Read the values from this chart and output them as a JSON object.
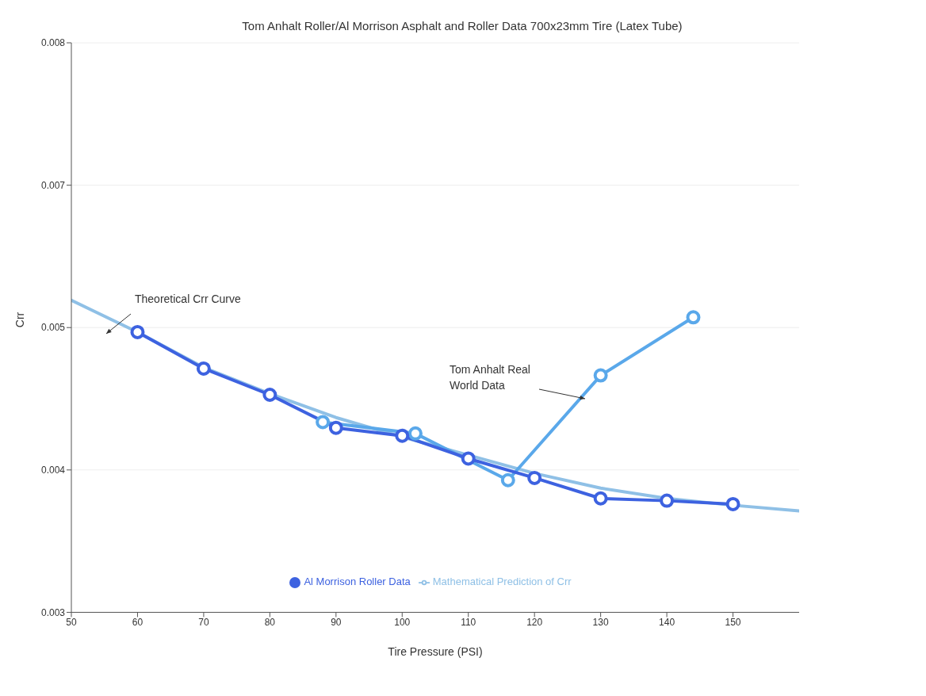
{
  "chart_data": {
    "type": "line",
    "title": "Tom Anhalt Roller/Al Morrison Asphalt and Roller Data 700x23mm Tire (Latex Tube)",
    "xlabel": "Tire Pressure (PSI)",
    "ylabel": "Crr",
    "xlim": [
      50,
      160
    ],
    "xticks": [
      50,
      60,
      70,
      80,
      90,
      100,
      110,
      120,
      130,
      140,
      150
    ],
    "ylim": [
      0.003,
      0.008
    ],
    "yticks": [
      {
        "value": 0.003,
        "label": "0.003"
      },
      {
        "value": 0.00425,
        "label": "0.004"
      },
      {
        "value": 0.0055,
        "label": "0.005"
      },
      {
        "value": 0.00675,
        "label": "0.007"
      },
      {
        "value": 0.008,
        "label": "0.008"
      }
    ],
    "grid": "y",
    "legend": "bottom",
    "line_style": "solid",
    "series": [
      {
        "name": "Mathematical Prediction of Crr",
        "color": "#8fc0e6",
        "marker": "none",
        "x": [
          50,
          60,
          70,
          80,
          90,
          100,
          110,
          120,
          130,
          140,
          150,
          160
        ],
        "values": [
          0.00574,
          0.00546,
          0.00515,
          0.00492,
          0.00471,
          0.00454,
          0.00438,
          0.00422,
          0.00409,
          0.004,
          0.00394,
          0.00389
        ]
      },
      {
        "color": "#5aa8ea",
        "marker": "circle",
        "x": [
          88,
          102,
          116,
          130,
          144
        ],
        "values": [
          0.00467,
          0.00457,
          0.00416,
          0.00508,
          0.00559
        ]
      },
      {
        "name": "Al Morrison Roller Data",
        "color": "#3d62e0",
        "marker": "circle",
        "x": [
          60,
          70,
          80,
          90,
          100,
          110,
          120,
          130,
          140,
          150
        ],
        "values": [
          0.00546,
          0.00514,
          0.00491,
          0.00462,
          0.00455,
          0.00435,
          0.00418,
          0.004,
          0.00398,
          0.00395
        ]
      }
    ],
    "annotations": [
      "Theoretical Crr Curve",
      "Tom Anhalt Real World Data"
    ]
  }
}
